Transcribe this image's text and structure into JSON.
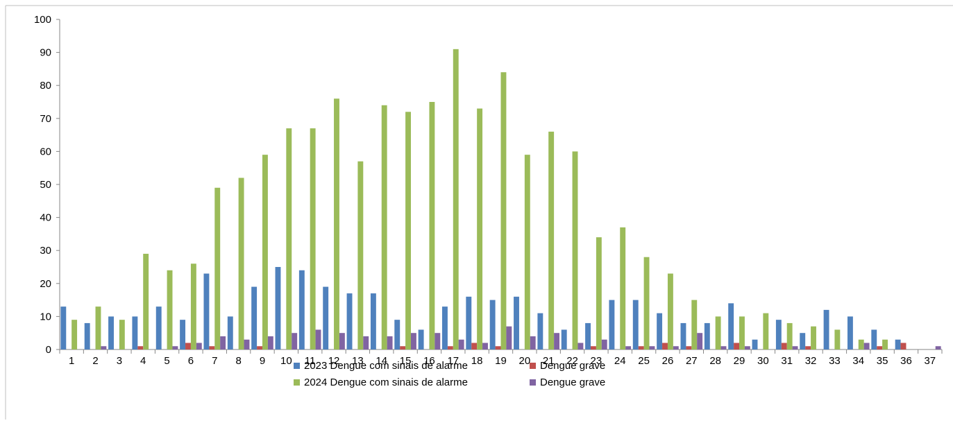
{
  "chart_data": {
    "type": "bar",
    "title": "",
    "xlabel": "",
    "ylabel": "",
    "ylim": [
      0,
      100
    ],
    "yticks": [
      0,
      10,
      20,
      30,
      40,
      50,
      60,
      70,
      80,
      90,
      100
    ],
    "grid": false,
    "legend_position": "bottom",
    "categories": [
      "1",
      "2",
      "3",
      "4",
      "5",
      "6",
      "7",
      "8",
      "9",
      "10",
      "11",
      "12",
      "13",
      "14",
      "15",
      "16",
      "17",
      "18",
      "19",
      "20",
      "21",
      "22",
      "23",
      "24",
      "25",
      "26",
      "27",
      "28",
      "29",
      "30",
      "31",
      "32",
      "33",
      "34",
      "35",
      "36",
      "37"
    ],
    "series": [
      {
        "name": "2023 Dengue com sinais de alarme",
        "color": "#4F81BD",
        "values": [
          13,
          8,
          10,
          10,
          13,
          9,
          23,
          10,
          19,
          25,
          24,
          19,
          17,
          17,
          9,
          6,
          13,
          16,
          15,
          16,
          11,
          6,
          8,
          15,
          15,
          11,
          8,
          8,
          14,
          3,
          9,
          5,
          12,
          10,
          6,
          3,
          0
        ]
      },
      {
        "name": "Dengue grave",
        "color": "#C0504D",
        "values": [
          0,
          0,
          0,
          1,
          0,
          2,
          1,
          0,
          1,
          0,
          0,
          0,
          0,
          0,
          1,
          0,
          1,
          2,
          1,
          0,
          0,
          0,
          1,
          0,
          1,
          2,
          1,
          0,
          2,
          0,
          2,
          1,
          0,
          0,
          1,
          2,
          0
        ]
      },
      {
        "name": "2024 Dengue com sinais de alarme",
        "color": "#9BBB59",
        "values": [
          9,
          13,
          9,
          29,
          24,
          26,
          49,
          52,
          59,
          67,
          67,
          76,
          57,
          74,
          72,
          75,
          91,
          73,
          84,
          59,
          66,
          60,
          34,
          37,
          28,
          23,
          15,
          10,
          10,
          11,
          8,
          7,
          6,
          3,
          3,
          0,
          0
        ]
      },
      {
        "name": "Dengue grave",
        "color": "#8064A2",
        "values": [
          0,
          1,
          0,
          0,
          1,
          2,
          4,
          3,
          4,
          5,
          6,
          5,
          4,
          4,
          5,
          5,
          3,
          2,
          7,
          4,
          5,
          2,
          3,
          1,
          1,
          1,
          5,
          1,
          1,
          0,
          1,
          0,
          0,
          2,
          0,
          0,
          1
        ]
      }
    ]
  }
}
